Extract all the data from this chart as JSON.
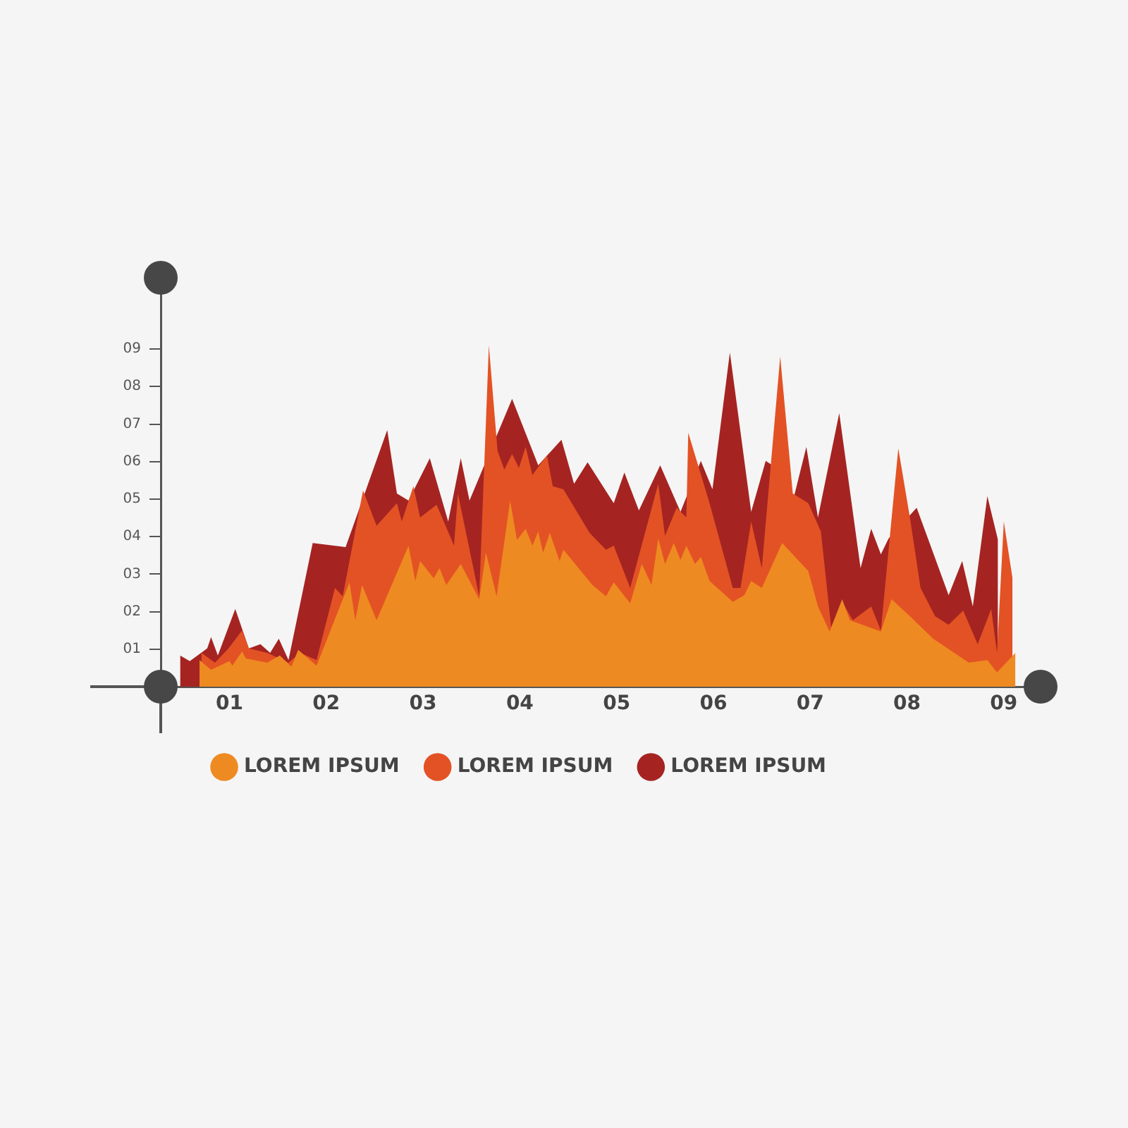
{
  "chart_data": {
    "type": "area",
    "xlim": [
      0.29,
      9.38
    ],
    "ylim": [
      0,
      10.9
    ],
    "xticks": [
      {
        "value": 1,
        "label": "01"
      },
      {
        "value": 2,
        "label": "02"
      },
      {
        "value": 3,
        "label": "03"
      },
      {
        "value": 4,
        "label": "04"
      },
      {
        "value": 5,
        "label": "05"
      },
      {
        "value": 6,
        "label": "06"
      },
      {
        "value": 7,
        "label": "07"
      },
      {
        "value": 8,
        "label": "08"
      },
      {
        "value": 9,
        "label": "09"
      }
    ],
    "yticks": [
      {
        "value": 1,
        "label": "01"
      },
      {
        "value": 2,
        "label": "02"
      },
      {
        "value": 3,
        "label": "03"
      },
      {
        "value": 4,
        "label": "04"
      },
      {
        "value": 5,
        "label": "05"
      },
      {
        "value": 6,
        "label": "06"
      },
      {
        "value": 7,
        "label": "07"
      },
      {
        "value": 8,
        "label": "08"
      },
      {
        "value": 9,
        "label": "09"
      }
    ],
    "grid": false,
    "legend": "bottom",
    "marker": "none",
    "series": [
      {
        "name": "LOREM IPSUM",
        "color": "#ee8a22",
        "x": [
          0.69,
          0.81,
          1.0,
          1.03,
          1.13,
          1.17,
          1.39,
          1.52,
          1.64,
          1.71,
          1.9,
          2.24,
          2.3,
          2.37,
          2.52,
          2.85,
          2.92,
          2.97,
          3.11,
          3.17,
          3.24,
          3.39,
          3.58,
          3.65,
          3.76,
          3.9,
          3.97,
          4.06,
          4.13,
          4.19,
          4.24,
          4.31,
          4.41,
          4.45,
          4.75,
          4.89,
          4.97,
          5.14,
          5.26,
          5.36,
          5.43,
          5.5,
          5.59,
          5.66,
          5.72,
          5.81,
          5.87,
          5.96,
          6.2,
          6.32,
          6.39,
          6.5,
          6.71,
          6.98,
          7.08,
          7.2,
          7.33,
          7.41,
          7.73,
          7.84,
          8.03,
          8.27,
          8.64,
          8.83,
          8.93,
          9.12
        ],
        "values": [
          0.71,
          0.45,
          0.68,
          0.56,
          0.94,
          0.75,
          0.64,
          0.83,
          0.53,
          0.98,
          0.56,
          2.78,
          1.77,
          2.71,
          1.77,
          3.76,
          2.82,
          3.35,
          2.89,
          3.16,
          2.71,
          3.27,
          2.33,
          3.57,
          2.41,
          4.96,
          3.91,
          4.21,
          3.76,
          4.14,
          3.57,
          4.1,
          3.35,
          3.65,
          2.71,
          2.41,
          2.78,
          2.22,
          3.27,
          2.71,
          3.95,
          3.27,
          3.83,
          3.38,
          3.76,
          3.27,
          3.46,
          2.82,
          2.26,
          2.44,
          2.82,
          2.63,
          3.83,
          3.08,
          2.14,
          1.47,
          2.33,
          1.77,
          1.47,
          2.33,
          1.88,
          1.28,
          0.64,
          0.71,
          0.38,
          0.9
        ]
      },
      {
        "name": "LOREM IPSUM",
        "color": "#e35224",
        "x": [
          0.71,
          0.85,
          0.99,
          1.13,
          1.2,
          1.39,
          1.61,
          1.73,
          1.9,
          2.09,
          2.17,
          2.38,
          2.52,
          2.73,
          2.78,
          2.9,
          2.97,
          3.14,
          3.32,
          3.36,
          3.58,
          3.68,
          3.77,
          3.84,
          3.92,
          3.99,
          4.06,
          4.13,
          4.28,
          4.34,
          4.45,
          4.72,
          4.89,
          4.97,
          5.14,
          5.43,
          5.5,
          5.62,
          5.72,
          5.74,
          5.96,
          6.2,
          6.28,
          6.39,
          6.5,
          6.69,
          6.82,
          6.98,
          7.11,
          7.22,
          7.33,
          7.44,
          7.63,
          7.73,
          7.91,
          8.03,
          8.14,
          8.29,
          8.43,
          8.58,
          8.73,
          8.87,
          8.93,
          9.0,
          9.09
        ],
        "values": [
          0.9,
          0.64,
          1.02,
          1.5,
          1.02,
          0.9,
          0.64,
          0.9,
          0.71,
          2.63,
          2.41,
          5.23,
          4.29,
          4.89,
          4.4,
          5.34,
          4.51,
          4.85,
          3.76,
          5.15,
          2.41,
          9.1,
          6.28,
          5.79,
          6.2,
          5.83,
          6.39,
          5.64,
          6.17,
          5.34,
          5.26,
          4.1,
          3.65,
          3.76,
          2.63,
          5.41,
          4.02,
          4.77,
          4.51,
          6.77,
          4.89,
          2.63,
          2.63,
          4.4,
          3.16,
          8.8,
          5.15,
          4.89,
          4.14,
          1.5,
          2.26,
          1.77,
          2.14,
          1.5,
          6.35,
          4.51,
          2.63,
          1.88,
          1.65,
          2.03,
          1.13,
          2.07,
          0.9,
          4.4,
          2.89
        ]
      },
      {
        "name": "LOREM IPSUM",
        "color": "#a52422",
        "x": [
          0.49,
          0.59,
          0.77,
          0.81,
          0.88,
          1.06,
          1.2,
          1.32,
          1.42,
          1.51,
          1.61,
          1.86,
          2.2,
          2.63,
          2.73,
          2.85,
          3.07,
          3.26,
          3.39,
          3.48,
          3.92,
          4.19,
          4.43,
          4.56,
          4.7,
          4.97,
          5.08,
          5.23,
          5.45,
          5.66,
          5.87,
          5.99,
          6.17,
          6.39,
          6.54,
          6.61,
          6.83,
          6.96,
          7.08,
          7.3,
          7.52,
          7.63,
          7.73,
          7.81,
          8.1,
          8.43,
          8.57,
          8.68,
          8.83,
          8.94
        ],
        "values": [
          0.83,
          0.68,
          1.02,
          1.32,
          0.83,
          2.07,
          1.02,
          1.13,
          0.9,
          1.28,
          0.71,
          3.83,
          3.72,
          6.84,
          5.15,
          4.96,
          6.09,
          4.4,
          6.09,
          4.96,
          7.67,
          5.9,
          6.58,
          5.41,
          5.98,
          4.89,
          5.71,
          4.7,
          5.9,
          4.66,
          6.02,
          5.26,
          8.91,
          4.66,
          6.02,
          5.9,
          5.04,
          6.39,
          4.51,
          7.29,
          3.16,
          4.21,
          3.53,
          3.95,
          4.77,
          2.44,
          3.35,
          2.14,
          5.08,
          3.91
        ]
      }
    ]
  }
}
